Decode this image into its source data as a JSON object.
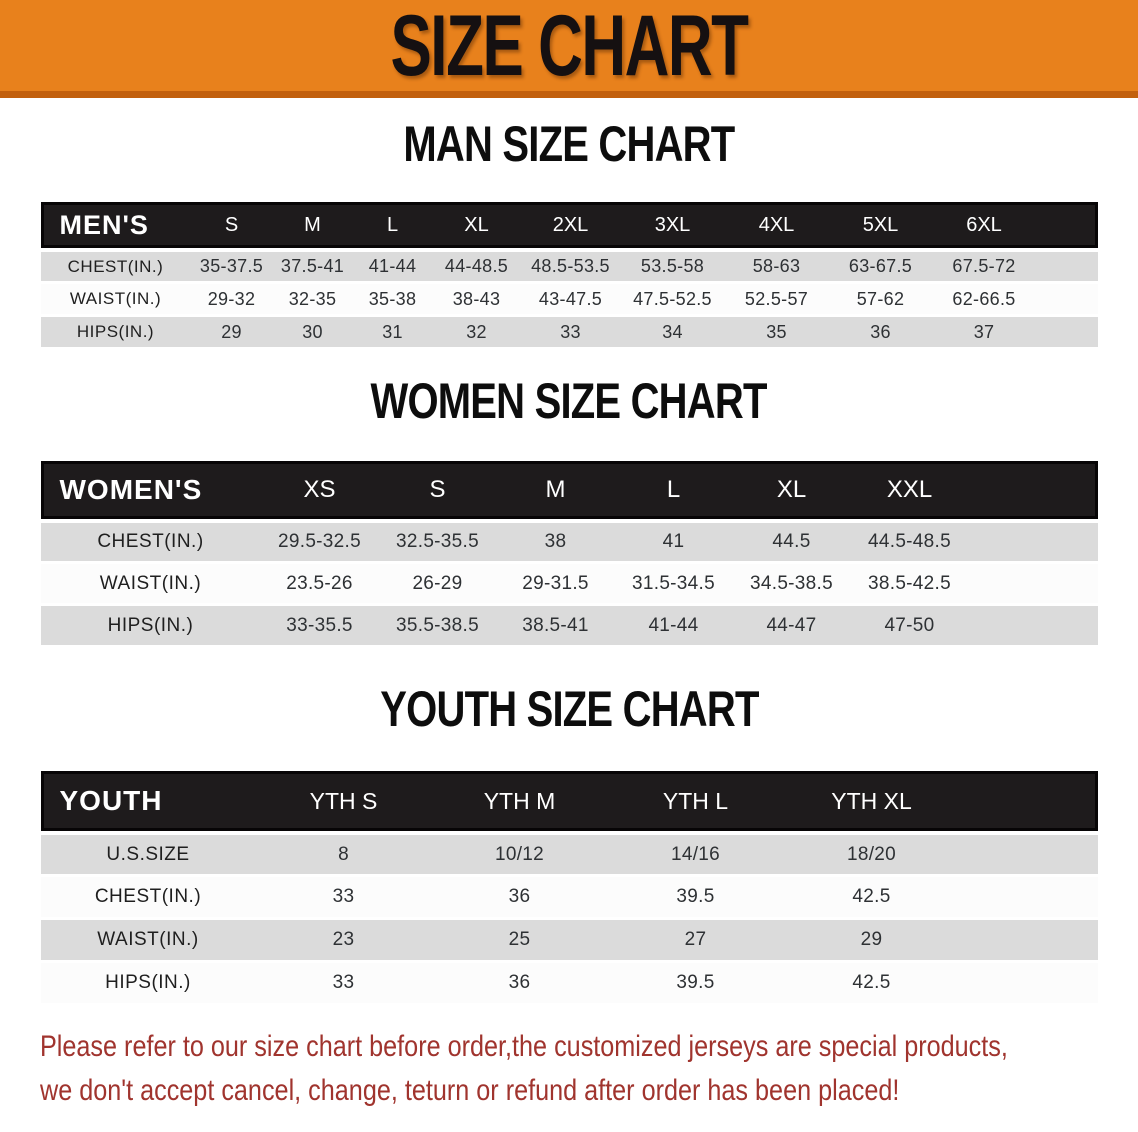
{
  "banner": {
    "title": "SIZE CHART",
    "bg_color": "#E8811C",
    "edge_color": "#C2600E",
    "text_color": "#151011"
  },
  "sections": [
    {
      "id": "men",
      "heading": "MAN SIZE CHART",
      "group_label": "MEN'S",
      "columns": [
        "S",
        "M",
        "L",
        "XL",
        "2XL",
        "3XL",
        "4XL",
        "5XL",
        "6XL"
      ],
      "rows": [
        {
          "label": "CHEST(IN.)",
          "values": [
            "35-37.5",
            "37.5-41",
            "41-44",
            "44-48.5",
            "48.5-53.5",
            "53.5-58",
            "58-63",
            "63-67.5",
            "67.5-72"
          ]
        },
        {
          "label": "WAIST(IN.)",
          "values": [
            "29-32",
            "32-35",
            "35-38",
            "38-43",
            "43-47.5",
            "47.5-52.5",
            "52.5-57",
            "57-62",
            "62-66.5"
          ]
        },
        {
          "label": "HIPS(IN.)",
          "values": [
            "29",
            "30",
            "31",
            "32",
            "33",
            "34",
            "35",
            "36",
            "37"
          ]
        }
      ]
    },
    {
      "id": "women",
      "heading": "WOMEN SIZE CHART",
      "group_label": "WOMEN'S",
      "columns": [
        "XS",
        "S",
        "M",
        "L",
        "XL",
        "XXL"
      ],
      "rows": [
        {
          "label": "CHEST(IN.)",
          "values": [
            "29.5-32.5",
            "32.5-35.5",
            "38",
            "41",
            "44.5",
            "44.5-48.5"
          ]
        },
        {
          "label": "WAIST(IN.)",
          "values": [
            "23.5-26",
            "26-29",
            "29-31.5",
            "31.5-34.5",
            "34.5-38.5",
            "38.5-42.5"
          ]
        },
        {
          "label": "HIPS(IN.)",
          "values": [
            "33-35.5",
            "35.5-38.5",
            "38.5-41",
            "41-44",
            "44-47",
            "47-50"
          ]
        }
      ]
    },
    {
      "id": "youth",
      "heading": "YOUTH SIZE CHART",
      "group_label": "YOUTH",
      "columns": [
        "YTH S",
        "YTH M",
        "YTH L",
        "YTH XL"
      ],
      "rows": [
        {
          "label": "U.S.SIZE",
          "values": [
            "8",
            "10/12",
            "14/16",
            "18/20"
          ]
        },
        {
          "label": "CHEST(IN.)",
          "values": [
            "33",
            "36",
            "39.5",
            "42.5"
          ]
        },
        {
          "label": "WAIST(IN.)",
          "values": [
            "23",
            "25",
            "27",
            "29"
          ]
        },
        {
          "label": "HIPS(IN.)",
          "values": [
            "33",
            "36",
            "39.5",
            "42.5"
          ]
        }
      ]
    }
  ],
  "footer": {
    "lines": [
      "Please refer to our size chart before order,the customized jerseys are special products,",
      "we don't accept cancel, change, teturn or refund after order has been placed!"
    ],
    "text_color": "#A0342E"
  },
  "colors": {
    "header_bar": "#1E1B1C",
    "stripe_gray": "#DBDBDB",
    "stripe_white": "#FCFCFC",
    "value_text": "#2E3134"
  }
}
